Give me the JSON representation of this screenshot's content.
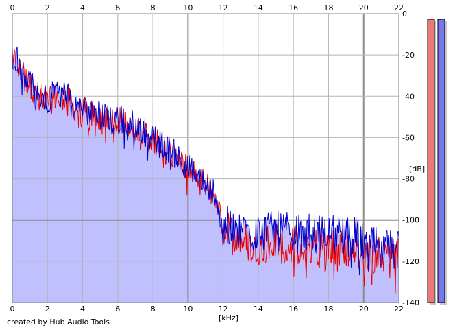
{
  "credit": "created by Hub Audio Tools",
  "colors": {
    "background": "#ffffff",
    "fill": "#c0c0ff",
    "left_channel": "#ee0000",
    "right_channel": "#0000cc",
    "grid": "#b4b4b4",
    "grid_major": "#8c8c8c",
    "meter_left": "#ee7777",
    "meter_right": "#7777ee"
  },
  "chart_data": {
    "type": "line",
    "subtype": "audio-spectrum",
    "title": "",
    "xlabel": "[kHz]",
    "ylabel": "[dB]",
    "xlim": [
      0,
      22
    ],
    "ylim": [
      -140,
      0
    ],
    "x_ticks": [
      "0",
      "2",
      "4",
      "6",
      "8",
      "10",
      "12",
      "14",
      "16",
      "18",
      "20",
      "22"
    ],
    "y_ticks": [
      "0",
      "-20",
      "-40",
      "-60",
      "-80",
      "-100",
      "-120",
      "-140"
    ],
    "x_tick_values": [
      0,
      2,
      4,
      6,
      8,
      10,
      12,
      14,
      16,
      18,
      20,
      22
    ],
    "y_tick_values": [
      0,
      -20,
      -40,
      -60,
      -80,
      -100,
      -120,
      -140
    ],
    "x_ticks_position": "top-and-bottom",
    "y_ticks_position": "right",
    "grid": true,
    "area_fill": true,
    "series": [
      {
        "channel": "left",
        "color": "#ee0000",
        "envelope_x": [
          0,
          0.3,
          0.6,
          1,
          1.5,
          2,
          2.5,
          3,
          3.5,
          4,
          4.5,
          5,
          5.5,
          6,
          6.5,
          7,
          7.5,
          8,
          8.5,
          9,
          9.5,
          10,
          10.5,
          11,
          11.5,
          12,
          12.5,
          13,
          13.5,
          14,
          14.5,
          15,
          15.5,
          16,
          16.5,
          17,
          17.5,
          18,
          18.5,
          19,
          19.5,
          20,
          20.5,
          21,
          21.5,
          22
        ],
        "envelope_y": [
          -22,
          -24,
          -30,
          -34,
          -40,
          -43,
          -40,
          -40,
          -45,
          -47,
          -49,
          -50,
          -51,
          -52,
          -53,
          -55,
          -58,
          -61,
          -64,
          -67,
          -71,
          -75,
          -79,
          -83,
          -88,
          -104,
          -107,
          -109,
          -111,
          -112,
          -112,
          -111,
          -112,
          -112,
          -113,
          -113,
          -113,
          -113,
          -114,
          -114,
          -114,
          -116,
          -117,
          -117,
          -117,
          -117
        ]
      },
      {
        "channel": "right",
        "color": "#0000cc",
        "envelope_x": [
          0,
          0.3,
          0.6,
          1,
          1.5,
          2,
          2.5,
          3,
          3.5,
          4,
          4.5,
          5,
          5.5,
          6,
          6.5,
          7,
          7.5,
          8,
          8.5,
          9,
          9.5,
          10,
          10.5,
          11,
          11.5,
          12,
          12.5,
          13,
          13.5,
          14,
          14.5,
          15,
          15.5,
          16,
          16.5,
          17,
          17.5,
          18,
          18.5,
          19,
          19.5,
          20,
          20.5,
          21,
          21.5,
          22
        ],
        "envelope_y": [
          -20,
          -22,
          -28,
          -33,
          -39,
          -42,
          -38,
          -39,
          -44,
          -46,
          -48,
          -49,
          -50,
          -51,
          -52,
          -54,
          -57,
          -60,
          -63,
          -66,
          -70,
          -74,
          -78,
          -82,
          -86,
          -101,
          -103,
          -104,
          -105,
          -106,
          -106,
          -105,
          -106,
          -106,
          -107,
          -107,
          -107,
          -107,
          -108,
          -108,
          -108,
          -111,
          -113,
          -114,
          -115,
          -115
        ]
      }
    ],
    "level_meters": [
      {
        "channel": "left",
        "color": "#ee7777",
        "level_db": 0
      },
      {
        "channel": "right",
        "color": "#7777ee",
        "level_db": 0
      }
    ]
  }
}
